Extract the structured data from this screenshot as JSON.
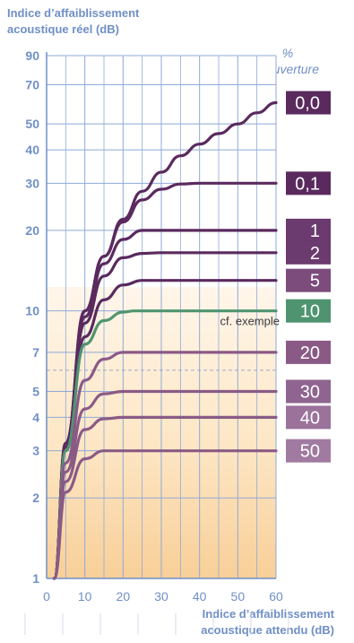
{
  "chart_data": {
    "type": "line",
    "ylabel": "Indice d’affaiblissement\nacoustique réel (dB)",
    "xlabel": "Indice d’affaiblissement\nacoustique attendu (dB)",
    "legend_title": "%\nd’ouverture",
    "annotation": "cf. exemple",
    "xlim": [
      0,
      60
    ],
    "ylim": [
      1,
      90
    ],
    "yscale": "log",
    "x_ticks": [
      0,
      10,
      20,
      30,
      40,
      50,
      60
    ],
    "y_ticks": [
      1,
      2,
      3,
      4,
      5,
      7,
      10,
      20,
      30,
      40,
      50,
      70,
      90
    ],
    "grid": true,
    "series": [
      {
        "name": "0,0",
        "color": "#5a2a5e",
        "x": [
          2,
          5,
          10,
          15,
          20,
          25,
          30,
          35,
          40,
          45,
          50,
          55,
          60
        ],
        "y": [
          1,
          3.2,
          10,
          16,
          22,
          28,
          33,
          38,
          42,
          46,
          50,
          55,
          60
        ]
      },
      {
        "name": "0,1",
        "color": "#5a2a5e",
        "x": [
          2,
          5,
          10,
          15,
          20,
          25,
          30,
          35,
          40,
          50,
          60
        ],
        "y": [
          1,
          3.2,
          10,
          16,
          21.5,
          26,
          28.5,
          29.8,
          30,
          30,
          30
        ]
      },
      {
        "name": "1",
        "color": "#5a2a5e",
        "x": [
          2,
          5,
          10,
          15,
          20,
          25,
          30,
          40,
          50,
          60
        ],
        "y": [
          1,
          3.2,
          9.5,
          15,
          18.5,
          20,
          20,
          20,
          20,
          20
        ]
      },
      {
        "name": "2",
        "color": "#5a2a5e",
        "x": [
          2,
          5,
          10,
          15,
          20,
          25,
          30,
          40,
          50,
          60
        ],
        "y": [
          1,
          3.1,
          9,
          13.5,
          15.8,
          16.4,
          16.5,
          16.5,
          16.5,
          16.5
        ]
      },
      {
        "name": "5",
        "color": "#5a2a5e",
        "x": [
          2,
          5,
          10,
          15,
          20,
          25,
          30,
          40,
          50,
          60
        ],
        "y": [
          1,
          3.0,
          8,
          11,
          12.5,
          13,
          13,
          13,
          13,
          13
        ]
      },
      {
        "name": "10",
        "color": "#4f9470",
        "x": [
          2,
          5,
          10,
          15,
          20,
          23,
          30,
          40,
          50,
          60
        ],
        "y": [
          1,
          3.0,
          7.5,
          9.2,
          9.9,
          10,
          10,
          10,
          10,
          10
        ]
      },
      {
        "name": "20",
        "color": "#8a5a86",
        "x": [
          2,
          5,
          10,
          15,
          20,
          25,
          30,
          40,
          50,
          60
        ],
        "y": [
          1,
          2.7,
          5.5,
          6.6,
          7,
          7,
          7,
          7,
          7,
          7
        ]
      },
      {
        "name": "30",
        "color": "#8a5a86",
        "x": [
          2,
          5,
          10,
          15,
          20,
          25,
          30,
          40,
          50,
          60
        ],
        "y": [
          1,
          2.5,
          4.3,
          4.9,
          5,
          5,
          5,
          5,
          5,
          5
        ]
      },
      {
        "name": "40",
        "color": "#8a5a86",
        "x": [
          2,
          5,
          10,
          15,
          20,
          25,
          30,
          40,
          50,
          60
        ],
        "y": [
          1,
          2.3,
          3.6,
          3.95,
          4,
          4,
          4,
          4,
          4,
          4
        ]
      },
      {
        "name": "50",
        "color": "#8a5a86",
        "x": [
          2,
          5,
          10,
          15,
          20,
          25,
          30,
          40,
          50,
          60
        ],
        "y": [
          1,
          2.1,
          2.8,
          3.0,
          3,
          3,
          3,
          3,
          3,
          3
        ]
      }
    ],
    "dashed_reference_y": 6,
    "label_colors": [
      "#5a2a5e",
      "#5a2a5e",
      "#6b3a6e",
      "#6b3a6e",
      "#7c4c7c",
      "#4f9470",
      "#8a5a86",
      "#8f6490",
      "#9a729a",
      "#a07aa0"
    ]
  }
}
